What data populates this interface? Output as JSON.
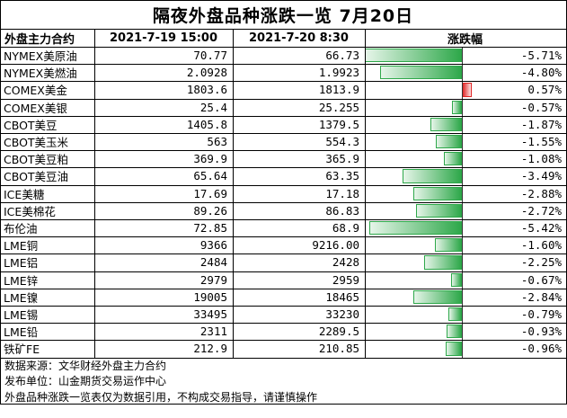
{
  "title": "隔夜外盘品种涨跌一览 7月20日",
  "headers": [
    "外盘主力合约",
    "2021-7-19 15:00",
    "2021-7-20 8:30",
    "涨跌幅"
  ],
  "rows": [
    {
      "name": "NYMEX美原油",
      "prev": "70.77",
      "curr": "66.73",
      "change_label": "-5.71%"
    },
    {
      "name": "NYMEX美燃油",
      "prev": "2.0928",
      "curr": "1.9923",
      "change_label": "-4.80%"
    },
    {
      "name": "COMEX美金",
      "prev": "1803.6",
      "curr": "1813.9",
      "change_label": "0.57%"
    },
    {
      "name": "COMEX美银",
      "prev": "25.4",
      "curr": "25.255",
      "change_label": "-0.57%"
    },
    {
      "name": "CBOT美豆",
      "prev": "1405.8",
      "curr": "1379.5",
      "change_label": "-1.87%"
    },
    {
      "name": "CBOT美玉米",
      "prev": "563",
      "curr": "554.3",
      "change_label": "-1.55%"
    },
    {
      "name": "CBOT美豆粕",
      "prev": "369.9",
      "curr": "365.9",
      "change_label": "-1.08%"
    },
    {
      "name": "CBOT美豆油",
      "prev": "65.64",
      "curr": "63.35",
      "change_label": "-3.49%"
    },
    {
      "name": "ICE美糖",
      "prev": "17.69",
      "curr": "17.18",
      "change_label": "-2.88%"
    },
    {
      "name": "ICE美棉花",
      "prev": "89.26",
      "curr": "86.83",
      "change_label": "-2.72%"
    },
    {
      "name": "布伦油",
      "prev": "72.85",
      "curr": "68.9",
      "change_label": "-5.42%"
    },
    {
      "name": "LME铜",
      "prev": "9366",
      "curr": "9216.00",
      "change_label": "-1.60%"
    },
    {
      "name": "LME铝",
      "prev": "2484",
      "curr": "2428",
      "change_label": "-2.25%"
    },
    {
      "name": "LME锌",
      "prev": "2979",
      "curr": "2959",
      "change_label": "-0.67%"
    },
    {
      "name": "LME镍",
      "prev": "19005",
      "curr": "18465",
      "change_label": "-2.84%"
    },
    {
      "name": "LME锡",
      "prev": "33495",
      "curr": "33230",
      "change_label": "-0.79%"
    },
    {
      "name": "LME铅",
      "prev": "2311",
      "curr": "2289.5",
      "change_label": "-0.93%"
    },
    {
      "name": "铁矿FE",
      "prev": "212.9",
      "curr": "210.85",
      "change_label": "-0.96%"
    }
  ],
  "footer": [
    "数据来源：文华财经外盘主力合约",
    "发布单位：山金期货交易运作中心",
    "外盘品种涨跌一览表仅为数据引用，不构成交易指导，请谨慎操作"
  ],
  "colors": {
    "negative": "#2ea84a",
    "negative_light": "#e6f5e9",
    "positive": "#e02424",
    "positive_light": "#fbe3e3",
    "grid": "#000000"
  },
  "chart_data": {
    "type": "bar",
    "categories": [
      "NYMEX美原油",
      "NYMEX美燃油",
      "COMEX美金",
      "COMEX美银",
      "CBOT美豆",
      "CBOT美玉米",
      "CBOT美豆粕",
      "CBOT美豆油",
      "ICE美糖",
      "ICE美棉花",
      "布伦油",
      "LME铜",
      "LME铝",
      "LME锌",
      "LME镍",
      "LME锡",
      "LME铅",
      "铁矿FE"
    ],
    "values": [
      -5.71,
      -4.8,
      0.57,
      -0.57,
      -1.87,
      -1.55,
      -1.08,
      -3.49,
      -2.88,
      -2.72,
      -5.42,
      -1.6,
      -2.25,
      -0.67,
      -2.84,
      -0.79,
      -0.93,
      -0.96
    ],
    "ylim": [
      -5.71,
      0.57
    ],
    "grid": true
  }
}
